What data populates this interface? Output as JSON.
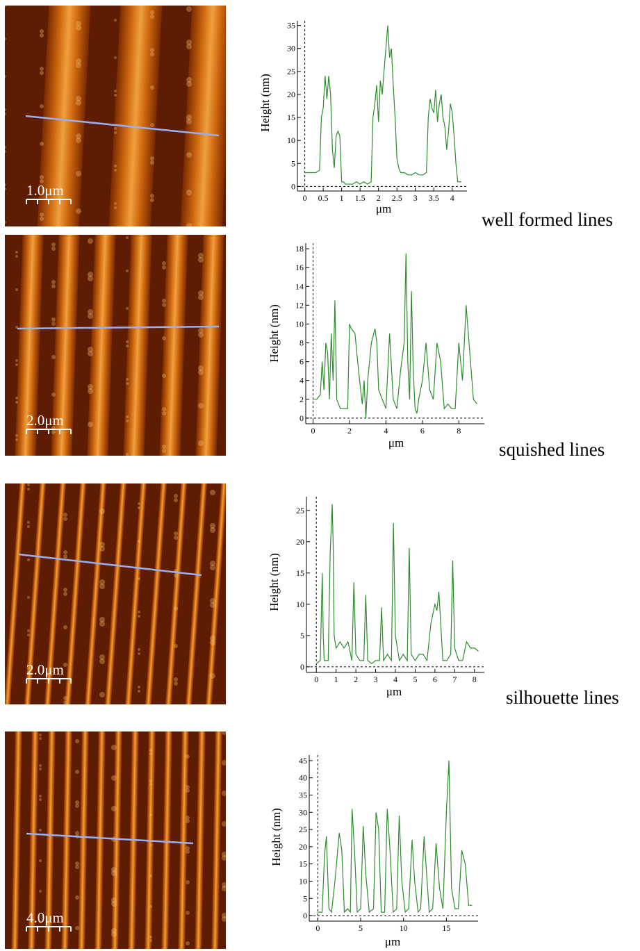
{
  "chart_data": [
    {
      "type": "line",
      "ylabel": "Height (nm)",
      "xlabel": "μm",
      "scale_label": "1.0μm",
      "caption": "well formed lines",
      "xlim": [
        -0.2,
        4.4
      ],
      "ylim": [
        -1,
        36
      ],
      "xticks": [
        0,
        0.5,
        1,
        1.5,
        2,
        2.5,
        3,
        3.5,
        4
      ],
      "yticks": [
        0,
        5,
        10,
        15,
        20,
        25,
        30,
        35
      ],
      "color": "#2e8b2e",
      "x": [
        0,
        0.1,
        0.2,
        0.3,
        0.4,
        0.45,
        0.5,
        0.55,
        0.6,
        0.65,
        0.7,
        0.75,
        0.8,
        0.85,
        0.9,
        0.95,
        1.0,
        1.05,
        1.1,
        1.2,
        1.3,
        1.4,
        1.5,
        1.6,
        1.7,
        1.8,
        1.85,
        1.9,
        1.95,
        2.0,
        2.05,
        2.1,
        2.15,
        2.2,
        2.25,
        2.3,
        2.35,
        2.4,
        2.45,
        2.5,
        2.55,
        2.6,
        2.7,
        2.8,
        2.9,
        3.0,
        3.1,
        3.2,
        3.3,
        3.35,
        3.4,
        3.45,
        3.5,
        3.55,
        3.6,
        3.65,
        3.7,
        3.75,
        3.8,
        3.85,
        3.9,
        3.95,
        4.0,
        4.05,
        4.1,
        4.15,
        4.2,
        4.25
      ],
      "values": [
        3,
        3,
        3,
        3,
        3.5,
        15,
        17,
        24,
        19,
        24,
        20,
        8,
        4,
        11,
        12,
        11,
        1,
        1,
        0.5,
        0.5,
        0.5,
        1,
        0.5,
        1,
        0.5,
        1,
        15,
        18,
        22,
        14,
        23,
        20,
        25,
        30,
        35,
        28,
        30,
        22,
        15,
        6,
        4,
        3,
        3,
        2.5,
        2.5,
        3,
        2.5,
        2.5,
        3,
        15,
        19,
        17,
        16,
        21,
        14,
        18,
        20,
        15,
        13,
        8,
        12,
        18,
        16,
        11,
        5,
        1,
        1,
        1
      ]
    },
    {
      "type": "line",
      "ylabel": "Height (nm)",
      "xlabel": "μm",
      "scale_label": "2.0μm",
      "caption": "squished lines",
      "xlim": [
        -0.4,
        9.4
      ],
      "ylim": [
        -0.6,
        18.6
      ],
      "xticks": [
        0,
        2,
        4,
        6,
        8
      ],
      "yticks": [
        0,
        2,
        4,
        6,
        8,
        10,
        12,
        14,
        16,
        18
      ],
      "color": "#2e8b2e",
      "x": [
        0,
        0.2,
        0.4,
        0.5,
        0.6,
        0.7,
        0.8,
        0.9,
        1.0,
        1.1,
        1.2,
        1.3,
        1.4,
        1.5,
        1.7,
        1.9,
        2.0,
        2.1,
        2.3,
        2.5,
        2.7,
        2.8,
        2.9,
        3.0,
        3.2,
        3.4,
        3.5,
        3.6,
        3.8,
        4.0,
        4.2,
        4.4,
        4.6,
        4.8,
        5.0,
        5.1,
        5.2,
        5.3,
        5.4,
        5.5,
        5.6,
        5.7,
        5.8,
        6.0,
        6.2,
        6.4,
        6.6,
        6.8,
        7.0,
        7.2,
        7.4,
        7.6,
        7.8,
        8.0,
        8.2,
        8.4,
        8.6,
        8.8,
        9.0
      ],
      "values": [
        2,
        2,
        2.5,
        6,
        3,
        8,
        7,
        2,
        9,
        4,
        12.5,
        2,
        1.5,
        1,
        1,
        1,
        10,
        9.5,
        9,
        5,
        1.5,
        4,
        0,
        4,
        8,
        9.5,
        8,
        3,
        2,
        1,
        9,
        2,
        1,
        5,
        8,
        17.5,
        6,
        2,
        13.5,
        5,
        1,
        0.5,
        2,
        4,
        8,
        3,
        2,
        8,
        6,
        1,
        1.5,
        1,
        1,
        8,
        4,
        12,
        7,
        2,
        1.5
      ]
    },
    {
      "type": "line",
      "ylabel": "Height (nm)",
      "xlabel": "μm",
      "scale_label": "2.0μm",
      "caption": "silhouette lines",
      "xlim": [
        -0.5,
        8.5
      ],
      "ylim": [
        -0.9,
        27.2
      ],
      "xticks": [
        0,
        1,
        2,
        3,
        4,
        5,
        6,
        7,
        8
      ],
      "yticks": [
        0,
        5,
        10,
        15,
        20,
        25
      ],
      "color": "#2e8b2e",
      "x": [
        0,
        0.2,
        0.3,
        0.35,
        0.4,
        0.5,
        0.6,
        0.7,
        0.8,
        0.85,
        0.9,
        1.0,
        1.2,
        1.4,
        1.6,
        1.8,
        1.9,
        2.0,
        2.2,
        2.4,
        2.5,
        2.6,
        2.8,
        3.0,
        3.2,
        3.3,
        3.4,
        3.6,
        3.8,
        3.9,
        4.0,
        4.2,
        4.4,
        4.6,
        4.7,
        4.8,
        5.0,
        5.2,
        5.4,
        5.6,
        5.8,
        6.0,
        6.1,
        6.2,
        6.4,
        6.6,
        6.8,
        6.9,
        7.0,
        7.2,
        7.4,
        7.6,
        7.8,
        8.0,
        8.2
      ],
      "values": [
        0.5,
        1,
        15,
        5,
        1,
        1,
        1,
        18,
        26,
        20,
        5,
        3,
        4,
        3,
        4,
        1,
        13.5,
        2,
        1,
        1,
        11.5,
        1,
        0.5,
        1,
        1,
        9.5,
        1,
        2,
        1,
        23,
        5,
        1,
        2,
        1,
        19,
        2,
        1,
        2,
        2,
        1,
        7,
        10,
        9,
        12,
        1,
        1,
        2,
        17,
        3,
        1,
        1,
        4,
        3,
        3,
        2.5
      ]
    },
    {
      "type": "line",
      "ylabel": "Height (nm)",
      "xlabel": "μm",
      "scale_label": "4.0μm",
      "xlim": [
        -1,
        18.7
      ],
      "ylim": [
        -1.6,
        46.6
      ],
      "xticks": [
        0,
        5,
        10,
        15
      ],
      "yticks": [
        0,
        5,
        10,
        15,
        20,
        25,
        30,
        35,
        40,
        45
      ],
      "color": "#2e8b2e",
      "x": [
        0,
        0.5,
        0.8,
        1.0,
        1.3,
        1.6,
        2.0,
        2.5,
        2.8,
        3.1,
        3.5,
        3.8,
        4.0,
        4.3,
        4.6,
        5.0,
        5.3,
        5.6,
        6.0,
        6.5,
        6.8,
        7.1,
        7.4,
        7.8,
        8.1,
        8.4,
        8.8,
        9.2,
        9.5,
        9.8,
        10.2,
        10.6,
        11.0,
        11.3,
        11.7,
        12.0,
        12.4,
        12.7,
        13.0,
        13.4,
        13.8,
        14.2,
        14.6,
        15.0,
        15.3,
        15.6,
        16.0,
        16.4,
        16.8,
        17.2,
        17.6,
        18.0
      ],
      "values": [
        1,
        1,
        18,
        23,
        2,
        1,
        10,
        24,
        19,
        1,
        2,
        1,
        31,
        18,
        1,
        2,
        26,
        12,
        1,
        2,
        30,
        25,
        1,
        1,
        31,
        20,
        1,
        2,
        29,
        10,
        1,
        2,
        22,
        10,
        1,
        2,
        23,
        12,
        1,
        2,
        21,
        8,
        2,
        30,
        45,
        8,
        2,
        2,
        19,
        15,
        3,
        3
      ]
    }
  ]
}
